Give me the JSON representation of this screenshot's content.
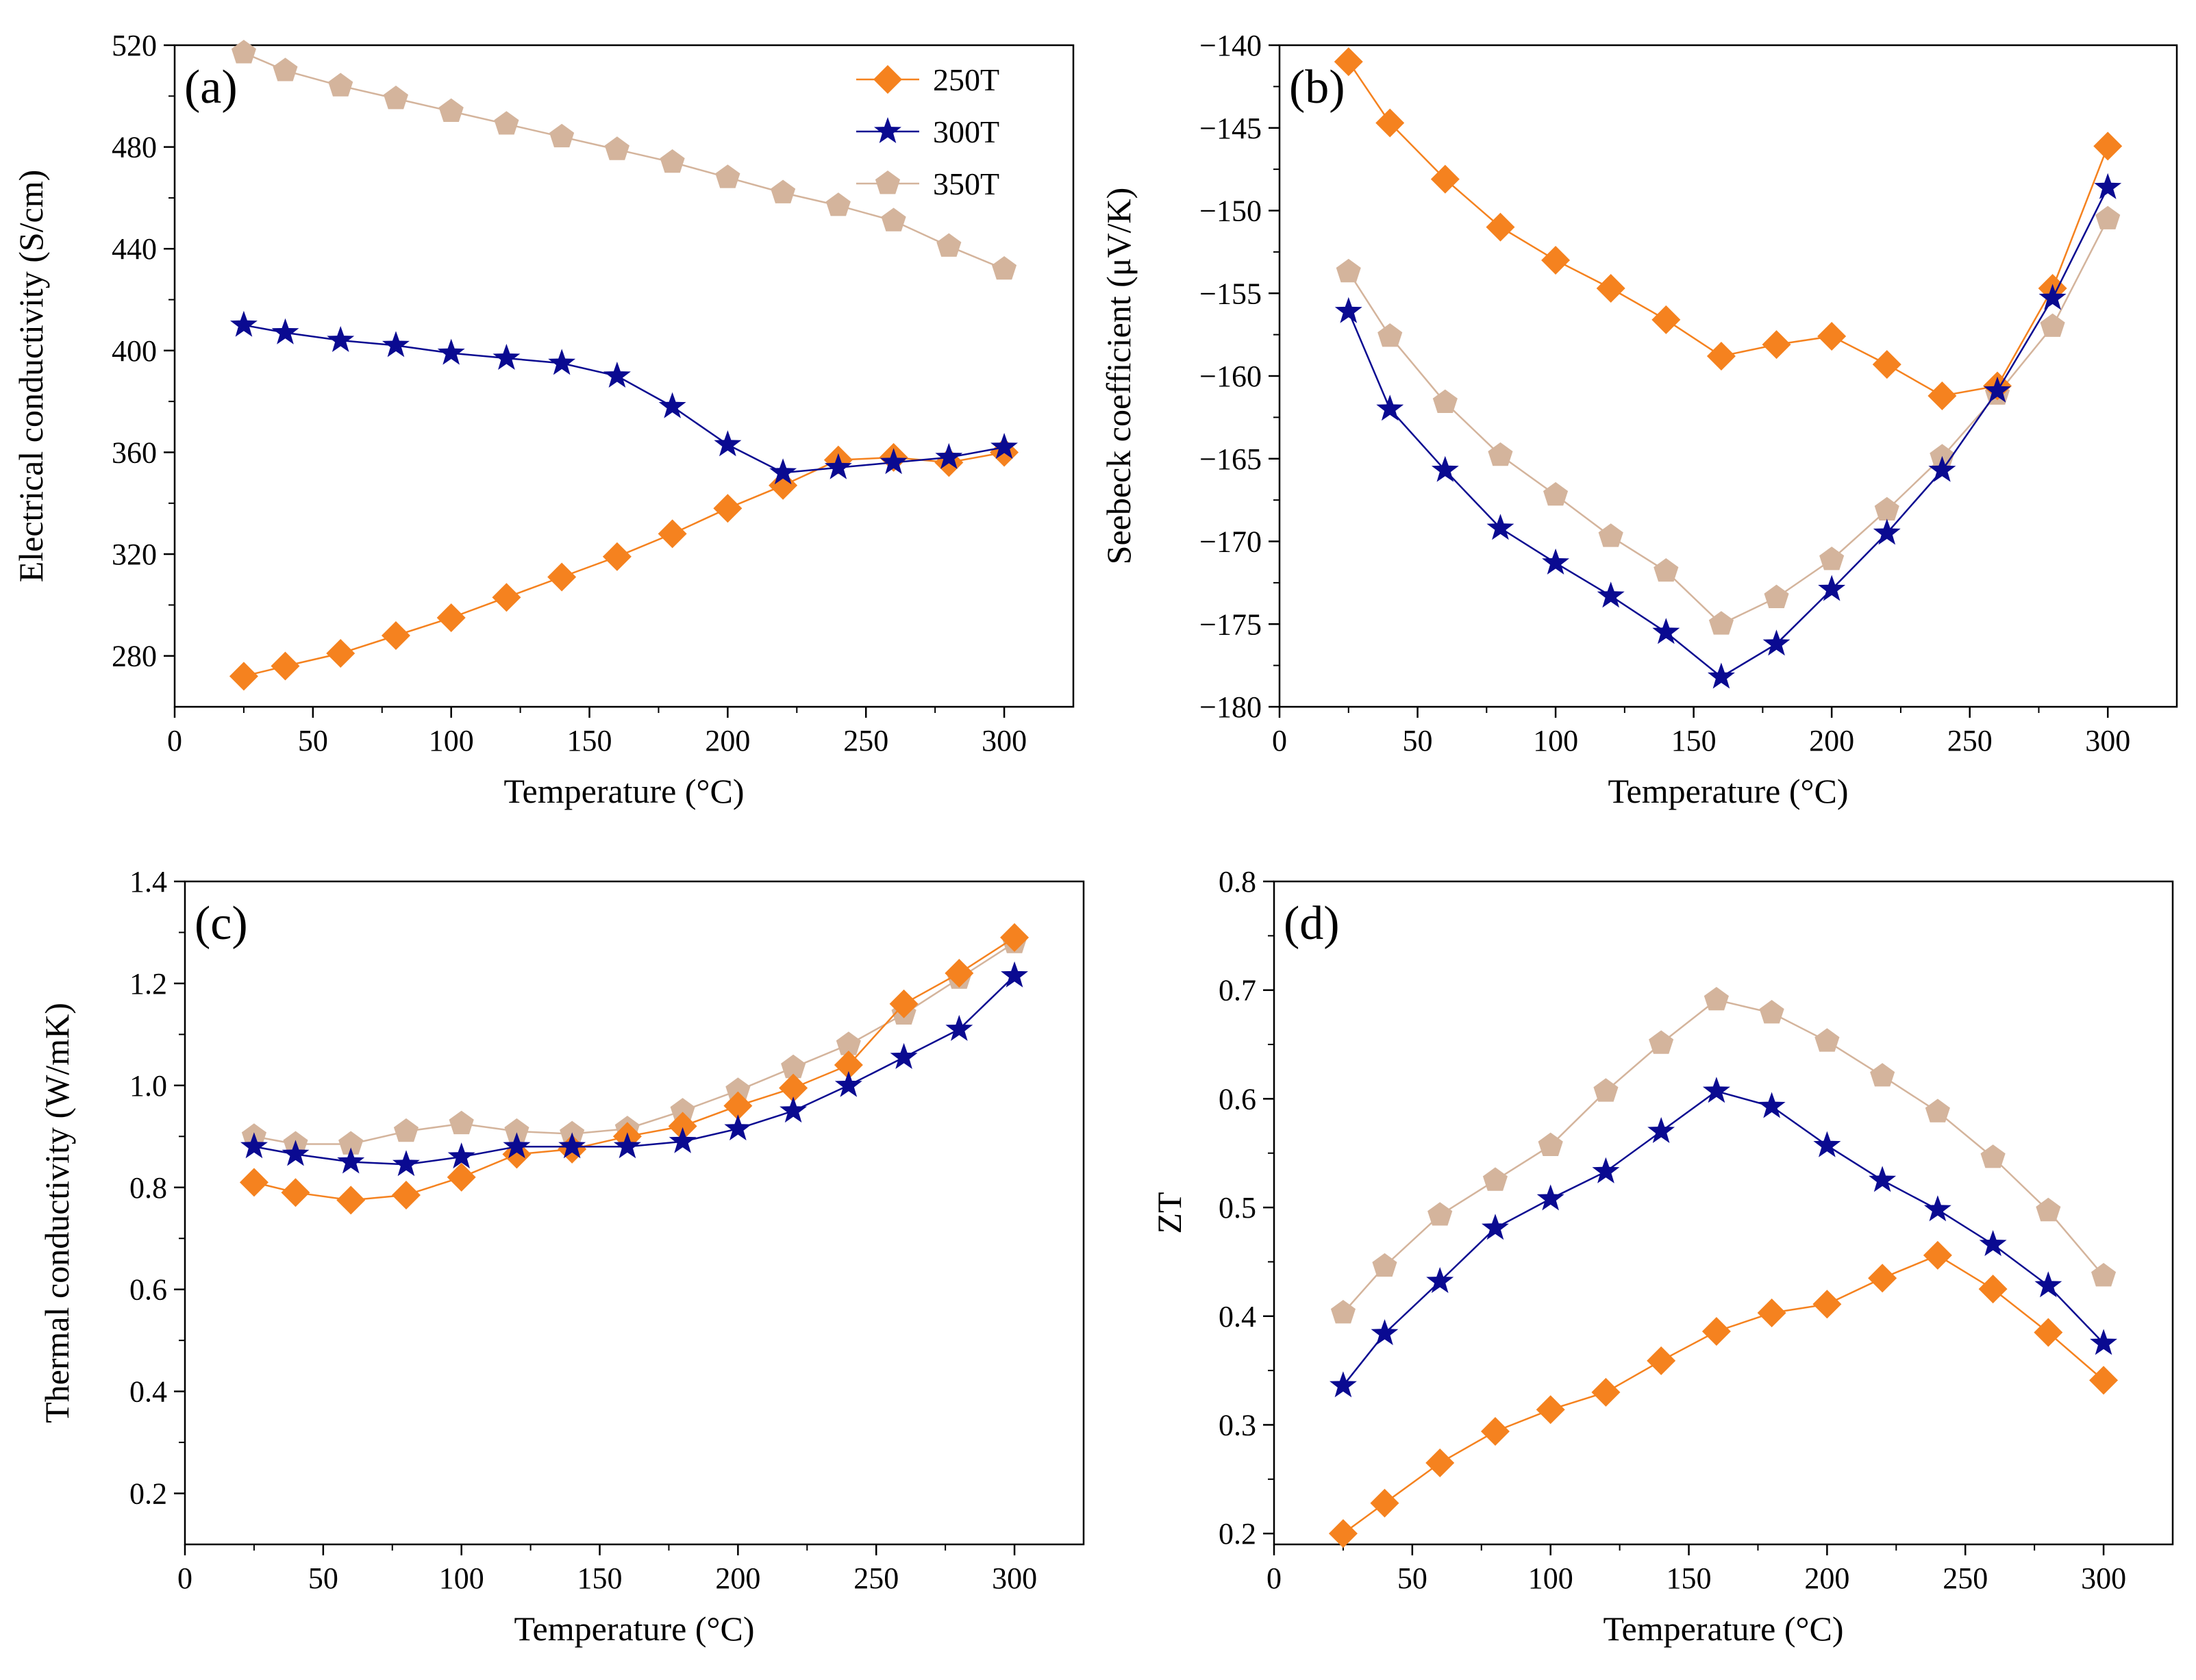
{
  "colors": {
    "250T": "#F5821F",
    "300T": "#0A0A91",
    "350T": "#D4B49C"
  },
  "legend": [
    {
      "name": "250T",
      "marker": "diamond"
    },
    {
      "name": "300T",
      "marker": "star"
    },
    {
      "name": "350T",
      "marker": "pentagon"
    }
  ],
  "chart_data": [
    {
      "panel": "(a)",
      "type": "line",
      "xlabel": "Temperature (°C)",
      "ylabel": "Electrical conductivity (S/cm)",
      "xlim": [
        0,
        325
      ],
      "ylim": [
        260,
        520
      ],
      "xticks": [
        0,
        50,
        100,
        150,
        200,
        250,
        300
      ],
      "yticks": [
        280,
        320,
        360,
        400,
        440,
        480,
        520
      ],
      "x": [
        25,
        40,
        60,
        80,
        100,
        120,
        140,
        160,
        180,
        200,
        220,
        240,
        260,
        280,
        300
      ],
      "series": [
        {
          "name": "250T",
          "marker": "diamond",
          "values": [
            272,
            276,
            281,
            288,
            295,
            303,
            311,
            319,
            328,
            338,
            347,
            357,
            358,
            356,
            360
          ]
        },
        {
          "name": "300T",
          "marker": "star",
          "values": [
            410,
            407,
            404,
            402,
            399,
            397,
            395,
            390,
            378,
            363,
            352,
            354,
            356,
            358,
            362
          ]
        },
        {
          "name": "350T",
          "marker": "pentagon",
          "values": [
            517,
            510,
            504,
            499,
            494,
            489,
            484,
            479,
            474,
            468,
            462,
            457,
            451,
            441,
            432
          ]
        }
      ],
      "legend_position": "top-right"
    },
    {
      "panel": "(b)",
      "type": "line",
      "xlabel": "Temperature (°C)",
      "ylabel": "Seebeck coefficient (μV/K)",
      "xlim": [
        0,
        325
      ],
      "ylim": [
        -180,
        -140
      ],
      "xticks": [
        0,
        50,
        100,
        150,
        200,
        250,
        300
      ],
      "yticks": [
        -140,
        -145,
        -150,
        -155,
        -160,
        -165,
        -170,
        -175,
        -180
      ],
      "ytick_labels": [
        "−140",
        "−145",
        "−150",
        "−155",
        "−160",
        "−165",
        "−170",
        "−175",
        "−180"
      ],
      "x": [
        25,
        40,
        60,
        80,
        100,
        120,
        140,
        160,
        180,
        200,
        220,
        240,
        260,
        280,
        300
      ],
      "series": [
        {
          "name": "250T",
          "marker": "diamond",
          "values": [
            -141,
            -144.7,
            -148.1,
            -151,
            -153,
            -154.7,
            -156.6,
            -158.8,
            -158.1,
            -157.6,
            -159.3,
            -161.2,
            -160.6,
            -154.7,
            -146.1
          ]
        },
        {
          "name": "300T",
          "marker": "star",
          "values": [
            -156.1,
            -162,
            -165.7,
            -169.2,
            -171.3,
            -173.3,
            -175.5,
            -178.2,
            -176.2,
            -172.9,
            -169.5,
            -165.7,
            -160.9,
            -155.3,
            -148.6
          ]
        },
        {
          "name": "350T",
          "marker": "pentagon",
          "values": [
            -153.7,
            -157.6,
            -161.6,
            -164.8,
            -167.2,
            -169.7,
            -171.8,
            -175,
            -173.4,
            -171.1,
            -168.1,
            -164.9,
            -161.1,
            -157,
            -150.5
          ]
        }
      ]
    },
    {
      "panel": "(c)",
      "type": "line",
      "xlabel": "Temperature (°C)",
      "ylabel": "Thermal conductivity (W/mK)",
      "xlim": [
        0,
        325
      ],
      "ylim": [
        0.1,
        1.4
      ],
      "xticks": [
        0,
        50,
        100,
        150,
        200,
        250,
        300
      ],
      "yticks": [
        0.2,
        0.4,
        0.6,
        0.8,
        1.0,
        1.2,
        1.4
      ],
      "ytick_labels": [
        "0.2",
        "0.4",
        "0.6",
        "0.8",
        "1.0",
        "1.2",
        "1.4"
      ],
      "x": [
        25,
        40,
        60,
        80,
        100,
        120,
        140,
        160,
        180,
        200,
        220,
        240,
        260,
        280,
        300
      ],
      "series": [
        {
          "name": "250T",
          "marker": "diamond",
          "values": [
            0.81,
            0.79,
            0.775,
            0.785,
            0.82,
            0.865,
            0.875,
            0.9,
            0.92,
            0.96,
            0.995,
            1.04,
            1.16,
            1.22,
            1.29
          ]
        },
        {
          "name": "300T",
          "marker": "star",
          "values": [
            0.88,
            0.865,
            0.85,
            0.845,
            0.86,
            0.88,
            0.88,
            0.88,
            0.89,
            0.915,
            0.95,
            1.0,
            1.055,
            1.11,
            1.215
          ]
        },
        {
          "name": "350T",
          "marker": "pentagon",
          "values": [
            0.9,
            0.885,
            0.885,
            0.91,
            0.925,
            0.91,
            0.905,
            0.915,
            0.95,
            0.99,
            1.035,
            1.08,
            1.14,
            1.21,
            1.28
          ]
        }
      ]
    },
    {
      "panel": "(d)",
      "type": "line",
      "xlabel": "Temperature (°C)",
      "ylabel": "ZT",
      "xlim": [
        0,
        325
      ],
      "ylim": [
        0.19,
        0.8
      ],
      "xticks": [
        0,
        50,
        100,
        150,
        200,
        250,
        300
      ],
      "yticks": [
        0.2,
        0.3,
        0.4,
        0.5,
        0.6,
        0.7,
        0.8
      ],
      "ytick_labels": [
        "0.2",
        "0.3",
        "0.4",
        "0.5",
        "0.6",
        "0.7",
        "0.8"
      ],
      "x": [
        25,
        40,
        60,
        80,
        100,
        120,
        140,
        160,
        180,
        200,
        220,
        240,
        260,
        280,
        300
      ],
      "series": [
        {
          "name": "250T",
          "marker": "diamond",
          "values": [
            0.2,
            0.228,
            0.265,
            0.294,
            0.314,
            0.33,
            0.359,
            0.386,
            0.403,
            0.411,
            0.435,
            0.456,
            0.425,
            0.385,
            0.341
          ]
        },
        {
          "name": "300T",
          "marker": "star",
          "values": [
            0.336,
            0.384,
            0.432,
            0.481,
            0.508,
            0.533,
            0.57,
            0.607,
            0.593,
            0.557,
            0.525,
            0.498,
            0.466,
            0.428,
            0.375
          ]
        },
        {
          "name": "350T",
          "marker": "pentagon",
          "values": [
            0.403,
            0.446,
            0.493,
            0.525,
            0.557,
            0.607,
            0.651,
            0.691,
            0.679,
            0.653,
            0.621,
            0.588,
            0.546,
            0.497,
            0.437
          ]
        }
      ]
    }
  ]
}
